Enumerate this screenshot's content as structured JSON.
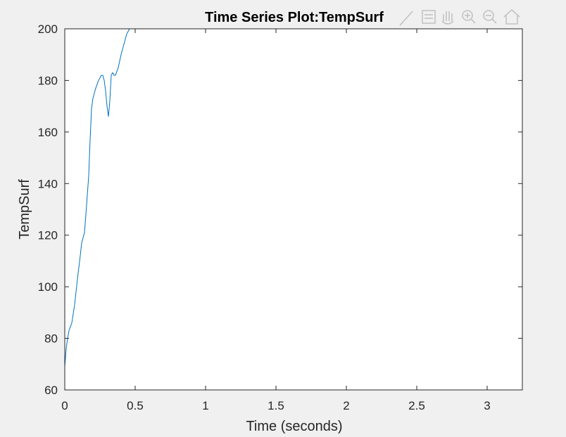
{
  "chart_data": {
    "type": "line",
    "title": "Time Series Plot:TempSurf",
    "xlabel": "Time (seconds)",
    "ylabel": "TempSurf",
    "xlim": [
      0,
      3.25
    ],
    "ylim": [
      60,
      200
    ],
    "xticks": [
      0,
      0.5,
      1,
      1.5,
      2,
      2.5,
      3
    ],
    "xtick_labels": [
      "0",
      "0.5",
      "1",
      "1.5",
      "2",
      "2.5",
      "3"
    ],
    "yticks": [
      60,
      80,
      100,
      120,
      140,
      160,
      180,
      200
    ],
    "ytick_labels": [
      "60",
      "80",
      "100",
      "120",
      "140",
      "160",
      "180",
      "200"
    ],
    "grid": false,
    "series": [
      {
        "color": "#0072bd",
        "x": [
          0,
          0.01,
          0.02,
          0.03,
          0.05,
          0.07,
          0.09,
          0.11,
          0.12,
          0.14,
          0.15,
          0.17,
          0.18,
          0.19,
          0.2,
          0.21,
          0.22,
          0.24,
          0.26,
          0.27,
          0.28,
          0.29,
          0.3,
          0.31,
          0.32,
          0.33,
          0.34,
          0.35,
          0.36,
          0.38,
          0.4,
          0.42,
          0.44,
          0.46,
          0.47,
          0.48,
          0.5,
          1,
          1.5,
          2,
          2.5,
          3,
          3.25
        ],
        "y": [
          69,
          76,
          80,
          83,
          86,
          93,
          103,
          112,
          117,
          121,
          128,
          143,
          157,
          169,
          173,
          175,
          177,
          180,
          182,
          182,
          180,
          176,
          170,
          166,
          172,
          182,
          183,
          182,
          182,
          185,
          190,
          194,
          198,
          200,
          200,
          200,
          200,
          200,
          200,
          200,
          200,
          200,
          200
        ]
      }
    ]
  },
  "toolbar": {
    "icons": [
      "brush-icon",
      "datatip-icon",
      "pan-hand-icon",
      "zoom-in-icon",
      "zoom-out-icon",
      "home-icon"
    ]
  }
}
